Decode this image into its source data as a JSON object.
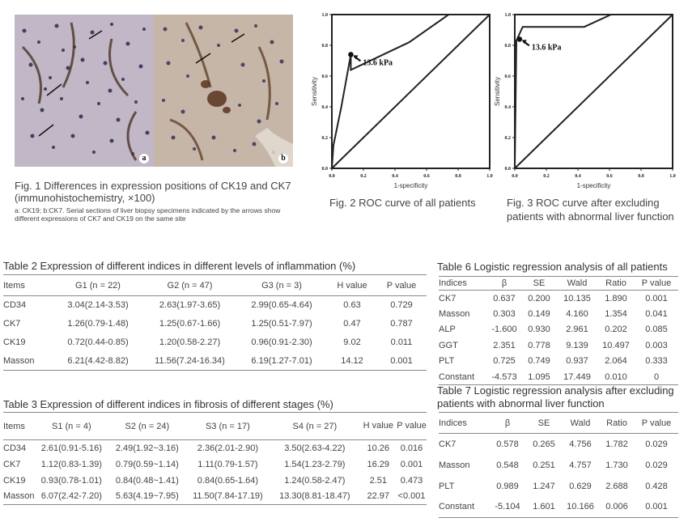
{
  "figures": {
    "fig1": {
      "panel_a_label": "a",
      "panel_b_label": "b",
      "caption": "Fig. 1 Differences in expression positions of CK19 and CK7 (immunohistochemistry, ×100)",
      "subcaption": "a: CK19; b:CK7. Serial sections of liver biopsy specimens indicated by the arrows show different expressions of CK7 and CK19 on the same site"
    },
    "fig2": {
      "caption": "Fig. 2 ROC curve of all patients",
      "xlabel": "1-specificity",
      "ylabel": "Sensitivity",
      "annotation": "13.6 kPa"
    },
    "fig3": {
      "caption_line1": "Fig. 3  ROC curve after excluding",
      "caption_line2": "patients with abnormal liver function",
      "xlabel": "1-specificity",
      "ylabel": "Sensitivity",
      "annotation": "13.6 kPa"
    }
  },
  "chart_data": [
    {
      "type": "line",
      "id": "fig2",
      "title": "",
      "xlabel": "1-specificity",
      "ylabel": "Sensitivity",
      "xlim": [
        0,
        1
      ],
      "ylim": [
        0,
        1
      ],
      "ticks": [
        "0.0",
        "0.2",
        "0.4",
        "0.6",
        "0.8",
        "1.0"
      ],
      "series": [
        {
          "x": [
            0.0,
            0.01,
            0.06,
            0.12,
            0.12,
            0.49,
            0.74,
            1.0
          ],
          "y": [
            0.0,
            0.15,
            0.4,
            0.74,
            0.64,
            0.82,
            1.0,
            1.0
          ]
        },
        {
          "x": [
            0,
            1
          ],
          "y": [
            0,
            1
          ]
        }
      ],
      "annotation": {
        "text": "13.6 kPa",
        "x": 0.12,
        "y": 0.74
      }
    },
    {
      "type": "line",
      "id": "fig3",
      "title": "",
      "xlabel": "1-specificity",
      "ylabel": "Sensitivity",
      "xlim": [
        0,
        1
      ],
      "ylim": [
        0,
        1
      ],
      "ticks": [
        "0.0",
        "0.2",
        "0.4",
        "0.6",
        "0.8",
        "1.0"
      ],
      "series": [
        {
          "x": [
            0.0,
            0.01,
            0.05,
            0.09,
            0.44,
            0.61,
            1.0
          ],
          "y": [
            0.0,
            0.83,
            0.92,
            0.92,
            0.92,
            1.0,
            1.0
          ]
        },
        {
          "x": [
            0,
            1
          ],
          "y": [
            0,
            1
          ]
        }
      ],
      "annotation": {
        "text": "13.6 kPa",
        "x": 0.03,
        "y": 0.84
      }
    }
  ],
  "table2": {
    "title": "Table 2 Expression of different indices in different levels of inflammation (%)",
    "headers": [
      "Items",
      "G1 (n = 22)",
      "G2 (n = 47)",
      "G3 (n = 3)",
      "H value",
      "P value"
    ],
    "rows": [
      [
        "CD34",
        "3.04(2.14-3.53)",
        "2.63(1.97-3.65)",
        "2.99(0.65-4.64)",
        "0.63",
        "0.729"
      ],
      [
        "CK7",
        "1.26(0.79-1.48)",
        "1.25(0.67-1.66)",
        "1.25(0.51-7.97)",
        "0.47",
        "0.787"
      ],
      [
        "CK19",
        "0.72(0.44-0.85)",
        "1.20(0.58-2.27)",
        "0.96(0.91-2.30)",
        "9.02",
        "0.011"
      ],
      [
        "Masson",
        "6.21(4.42-8.82)",
        "11.56(7.24-16.34)",
        "6.19(1.27-7.01)",
        "14.12",
        "0.001"
      ]
    ]
  },
  "table3": {
    "title": "Table 3 Expression of different indices in fibrosis of different stages (%)",
    "headers": [
      "Items",
      "S1 (n = 4)",
      "S2 (n = 24)",
      "S3 (n = 17)",
      "S4 (n = 27)",
      "H value",
      "P value"
    ],
    "rows": [
      [
        "CD34",
        "2.61(0.91-5.16)",
        "2.49(1.92~3.16)",
        "2.36(2.01-2.90)",
        "3.50(2.63-4.22)",
        "10.26",
        "0.016"
      ],
      [
        "CK7",
        "1.12(0.83-1.39)",
        "0.79(0.59~1.14)",
        "1.11(0.79-1.57)",
        "1.54(1.23-2.79)",
        "16.29",
        "0.001"
      ],
      [
        "CK19",
        "0.93(0.78-1.01)",
        "0.84(0.48~1.41)",
        "0.84(0.65-1.64)",
        "1.24(0.58-2.47)",
        "2.51",
        "0.473"
      ],
      [
        "Masson",
        "6.07(2.42-7.20)",
        "5.63(4.19~7.95)",
        "11.50(7.84-17.19)",
        "13.30(8.81-18.47)",
        "22.97",
        "<0.001"
      ]
    ]
  },
  "table6": {
    "title": "Table 6 Logistic regression analysis of all patients",
    "headers": [
      "Indices",
      "β",
      "SE",
      "Wald",
      "Ratio",
      "P value"
    ],
    "rows": [
      [
        "CK7",
        "0.637",
        "0.200",
        "10.135",
        "1.890",
        "0.001"
      ],
      [
        "Masson",
        "0.303",
        "0.149",
        "4.160",
        "1.354",
        "0.041"
      ],
      [
        "ALP",
        "-1.600",
        "0.930",
        "2.961",
        "0.202",
        "0.085"
      ],
      [
        "GGT",
        "2.351",
        "0.778",
        "9.139",
        "10.497",
        "0.003"
      ],
      [
        "PLT",
        "0.725",
        "0.749",
        "0.937",
        "2.064",
        "0.333"
      ],
      [
        "Constant",
        "-4.573",
        "1.095",
        "17.449",
        "0.010",
        "0"
      ]
    ]
  },
  "table7": {
    "title_line1": "Table 7 Logistic regression analysis after excluding",
    "title_line2": "patients with abnormal liver function",
    "headers": [
      "Indices",
      "β",
      "SE",
      "Wald",
      "Ratio",
      "P value"
    ],
    "rows": [
      [
        "CK7",
        "0.578",
        "0.265",
        "4.756",
        "1.782",
        "0.029"
      ],
      [
        "Masson",
        "0.548",
        "0.251",
        "4.757",
        "1.730",
        "0.029"
      ],
      [
        "PLT",
        "0.989",
        "1.247",
        "0.629",
        "2.688",
        "0.428"
      ],
      [
        "Constant",
        "-5.104",
        "1.601",
        "10.166",
        "0.006",
        "0.001"
      ]
    ]
  }
}
